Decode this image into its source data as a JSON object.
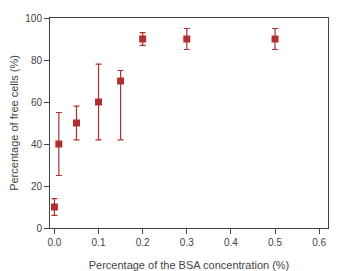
{
  "chart_data": {
    "type": "scatter",
    "x": [
      0.0,
      0.01,
      0.05,
      0.1,
      0.15,
      0.2,
      0.3,
      0.5
    ],
    "values": [
      10,
      40,
      50,
      60,
      70,
      90,
      90,
      90
    ],
    "yerr_low": [
      4,
      15,
      8,
      18,
      28,
      3,
      5,
      5
    ],
    "yerr_high": [
      4,
      15,
      8,
      18,
      5,
      3,
      5,
      5
    ],
    "color": "#b03030",
    "marker": "square",
    "xlabel": "Percentage of the BSA concentration (%)",
    "ylabel": "Percentage of free cells (%)",
    "xlim": [
      -0.01,
      0.62
    ],
    "ylim": [
      0,
      100
    ],
    "xticks": [
      {
        "value": 0,
        "label": "0.0"
      },
      0.1,
      0.2,
      0.3,
      0.4,
      0.5,
      0.6
    ],
    "yticks": [
      0,
      20,
      40,
      60,
      80,
      100
    ],
    "grid": false
  }
}
